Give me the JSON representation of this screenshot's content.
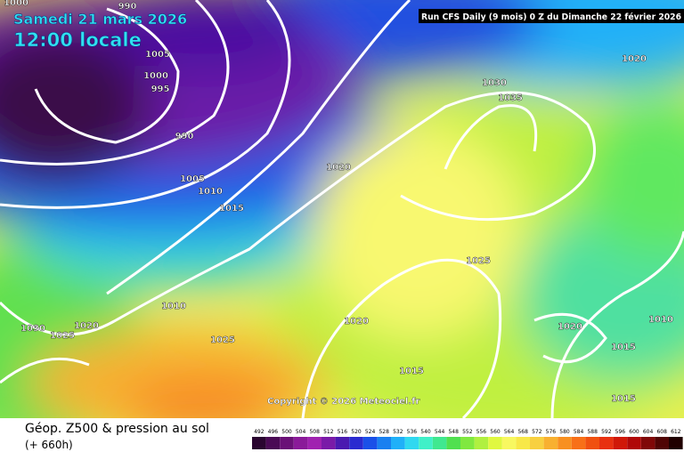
{
  "header": {
    "date": "Samedi 21 mars 2026",
    "time": "12:00 locale",
    "run": "Run CFS Daily (9 mois) 0 Z du Dimanche 22 février 2026"
  },
  "map": {
    "copyright": "Copyright © 2026 Meteociel.fr",
    "isobar_labels": [
      990,
      1000,
      1005,
      1000,
      995,
      990,
      1005,
      1010,
      1015,
      1020,
      1030,
      1035,
      1020,
      1025,
      1010,
      1030,
      1025,
      1020,
      1025,
      1020,
      1020,
      1010,
      1015,
      1015,
      1015
    ]
  },
  "footer": {
    "title": "Géop. Z500 & pression au sol",
    "lead": "(+ 660h)"
  },
  "scale": {
    "values": [
      492,
      496,
      500,
      504,
      508,
      512,
      516,
      520,
      524,
      528,
      532,
      536,
      540,
      544,
      548,
      552,
      556,
      560,
      564,
      568,
      572,
      576,
      580,
      584,
      588,
      592,
      596,
      600,
      604,
      608,
      612
    ],
    "colors": [
      "#2a0530",
      "#4a0a55",
      "#6a1077",
      "#8a1a99",
      "#a022b0",
      "#7a1aa8",
      "#4a1ab0",
      "#2a2ad0",
      "#1a50e8",
      "#1a80f0",
      "#20b0f8",
      "#30d8f0",
      "#40f0c8",
      "#40e890",
      "#50e050",
      "#80e840",
      "#b0f040",
      "#e0f840",
      "#f8f860",
      "#f8e848",
      "#f8d040",
      "#f8b030",
      "#f89020",
      "#f87018",
      "#f05010",
      "#e83010",
      "#d01808",
      "#b00808",
      "#800808",
      "#500404",
      "#200000"
    ]
  }
}
